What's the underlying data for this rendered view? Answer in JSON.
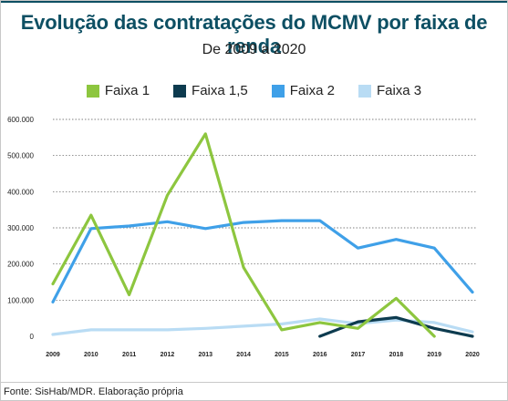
{
  "title": "Evolução das contratações do MCMV por faixa de renda",
  "subtitle": "De 2009 a 2020",
  "source": "Fonte: SisHab/MDR. Elaboração própria",
  "legend": [
    {
      "name": "Faixa 1",
      "color": "#8dc63f"
    },
    {
      "name": "Faixa 1,5",
      "color": "#0d3b4f"
    },
    {
      "name": "Faixa 2",
      "color": "#3fa0e8"
    },
    {
      "name": "Faixa 3",
      "color": "#b9dcf4"
    }
  ],
  "chart_data": {
    "type": "line",
    "title": "Evolução das contratações do MCMV por faixa de renda",
    "subtitle": "De 2009 a 2020",
    "xlabel": "",
    "ylabel": "",
    "categories": [
      "2009",
      "2010",
      "2011",
      "2012",
      "2013",
      "2014",
      "2015",
      "2016",
      "2017",
      "2018",
      "2019",
      "2020"
    ],
    "yticks": [
      0,
      100000,
      200000,
      300000,
      400000,
      500000,
      600000
    ],
    "ytick_labels": [
      "0",
      "100.000",
      "200.000",
      "300.000",
      "400.000",
      "500.000",
      "600.000"
    ],
    "ylim": [
      0,
      600000
    ],
    "grid": true,
    "legend_position": "top",
    "series": [
      {
        "name": "Faixa 1",
        "color": "#8dc63f",
        "values": [
          145000,
          335000,
          115000,
          390000,
          560000,
          190000,
          18000,
          38000,
          22000,
          105000,
          0,
          null
        ]
      },
      {
        "name": "Faixa 1,5",
        "color": "#0d3b4f",
        "values": [
          null,
          null,
          null,
          null,
          null,
          null,
          null,
          0,
          40000,
          52000,
          22000,
          0
        ]
      },
      {
        "name": "Faixa 2",
        "color": "#3fa0e8",
        "values": [
          95000,
          298000,
          305000,
          317000,
          298000,
          315000,
          320000,
          320000,
          244000,
          268000,
          244000,
          122000
        ]
      },
      {
        "name": "Faixa 3",
        "color": "#b9dcf4",
        "values": [
          5000,
          18000,
          18000,
          18000,
          22000,
          28000,
          34000,
          48000,
          35000,
          45000,
          38000,
          12000
        ]
      }
    ]
  }
}
